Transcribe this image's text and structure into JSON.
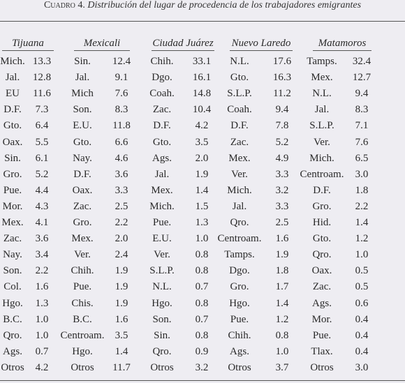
{
  "title": {
    "label": "Cuadro 4.",
    "text": "Distribución del lugar de procedencia de los trabajadores emigrantes"
  },
  "table": {
    "headers": [
      "Tijuana",
      "Mexicali",
      "Ciudad Juárez",
      "Nuevo Laredo",
      "Matamoros"
    ],
    "rows": [
      [
        "Mich.",
        "13.3",
        "Sin.",
        "12.4",
        "Chih.",
        "33.1",
        "N.L.",
        "17.6",
        "Tamps.",
        "32.4"
      ],
      [
        "Jal.",
        "12.8",
        "Jal.",
        "9.1",
        "Dgo.",
        "16.1",
        "Gto.",
        "16.3",
        "Mex.",
        "12.7"
      ],
      [
        "EU",
        "11.6",
        "Mich",
        "7.6",
        "Coah.",
        "14.8",
        "S.L.P.",
        "11.2",
        "N.L.",
        "9.4"
      ],
      [
        "D.F.",
        "7.3",
        "Son.",
        "8.3",
        "Zac.",
        "10.4",
        "Coah.",
        "9.4",
        "Jal.",
        "8.3"
      ],
      [
        "Gto.",
        "6.4",
        "E.U.",
        "11.8",
        "D.F.",
        "4.2",
        "D.F.",
        "7.8",
        "S.L.P.",
        "7.1"
      ],
      [
        "Oax.",
        "5.5",
        "Gto.",
        "6.6",
        "Gto.",
        "3.5",
        "Zac.",
        "5.2",
        "Ver.",
        "7.6"
      ],
      [
        "Sin.",
        "6.1",
        "Nay.",
        "4.6",
        "Ags.",
        "2.0",
        "Mex.",
        "4.9",
        "Mich.",
        "6.5"
      ],
      [
        "Gro.",
        "5.2",
        "D.F.",
        "3.6",
        "Jal.",
        "1.9",
        "Ver.",
        "3.3",
        "Centroam.",
        "3.0"
      ],
      [
        "Pue.",
        "4.4",
        "Oax.",
        "3.3",
        "Mex.",
        "1.4",
        "Mich.",
        "3.2",
        "D.F.",
        "1.8"
      ],
      [
        "Mor.",
        "4.3",
        "Zac.",
        "2.5",
        "Mich.",
        "1.5",
        "Jal.",
        "3.3",
        "Gro.",
        "2.2"
      ],
      [
        "Mex.",
        "4.1",
        "Gro.",
        "2.2",
        "Pue.",
        "1.3",
        "Qro.",
        "2.5",
        "Hid.",
        "1.4"
      ],
      [
        "Zac.",
        "3.6",
        "Mex.",
        "2.0",
        "E.U.",
        "1.0",
        "Centroam.",
        "1.6",
        "Gto.",
        "1.2"
      ],
      [
        "Nay.",
        "3.4",
        "Ver.",
        "2.4",
        "Ver.",
        "0.8",
        "Tamps.",
        "1.9",
        "Qro.",
        "1.0"
      ],
      [
        "Son.",
        "2.2",
        "Chih.",
        "1.9",
        "S.L.P.",
        "0.8",
        "Dgo.",
        "1.8",
        "Oax.",
        "0.5"
      ],
      [
        "Col.",
        "1.6",
        "Pue.",
        "1.9",
        "N.L.",
        "0.7",
        "Gro.",
        "1.7",
        "Zac.",
        "0.5"
      ],
      [
        "Hgo.",
        "1.3",
        "Chis.",
        "1.9",
        "Hgo.",
        "0.8",
        "Hgo.",
        "1.4",
        "Ags.",
        "0.6"
      ],
      [
        "B.C.",
        "1.0",
        "B.C.",
        "1.6",
        "Son.",
        "0.7",
        "Pue.",
        "1.2",
        "Mor.",
        "0.4"
      ],
      [
        "Qro.",
        "1.0",
        "Centroam.",
        "3.5",
        "Sin.",
        "0.8",
        "Chih.",
        "0.8",
        "Pue.",
        "0.4"
      ],
      [
        "Ags.",
        "0.7",
        "Hgo.",
        "1.4",
        "Qro.",
        "0.9",
        "Ags.",
        "1.0",
        "Tlax.",
        "0.4"
      ],
      [
        "Otros",
        "4.2",
        "Otros",
        "11.7",
        "Otros",
        "3.2",
        "Otros",
        "3.7",
        "Otros",
        "3.0"
      ]
    ]
  }
}
